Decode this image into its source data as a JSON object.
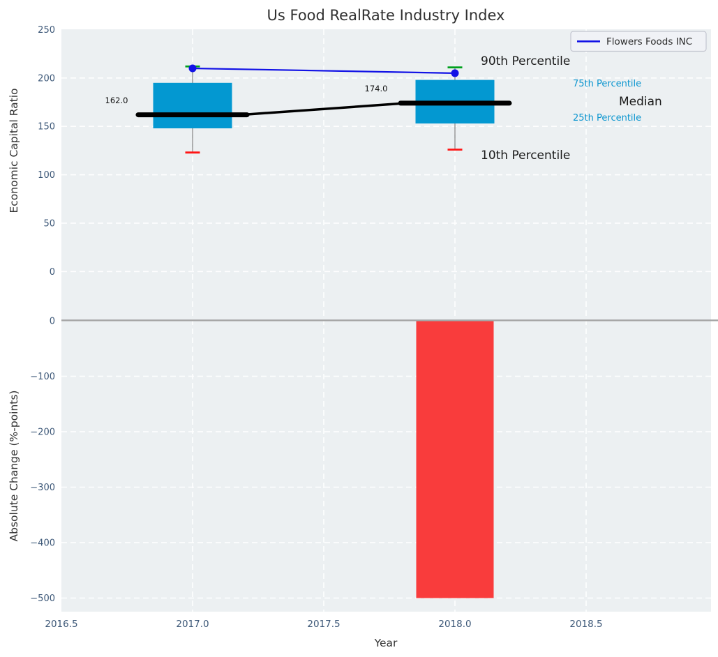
{
  "figure": {
    "title": "Us Food RealRate Industry Index",
    "background": "#ffffff",
    "plot_background": "#ecf0f2",
    "grid_color": "#ffffff",
    "tick_color": "#3d5878",
    "title_color": "#303030",
    "axis_label_color": "#333333"
  },
  "chart_data": [
    {
      "type": "box",
      "title": "Us Food RealRate Industry Index",
      "ylabel": "Economic Capital Ratio",
      "xlabel": "Year",
      "x": [
        2017,
        2018
      ],
      "xlim": [
        2016.5,
        2018.975
      ],
      "ylim": [
        -50,
        250
      ],
      "grid": true,
      "legend_position": "upper right",
      "legend": {
        "entries": [
          {
            "label": "Flowers Foods INC",
            "color": "#1212e6"
          }
        ]
      },
      "yticks": [
        250,
        200,
        150,
        100,
        50,
        0
      ],
      "ytick_labels": [
        "250",
        "200",
        "150",
        "100",
        "50",
        "0"
      ],
      "xticks": [
        2016.5,
        2017.0,
        2017.5,
        2018.0,
        2018.5
      ],
      "xtick_labels": [
        "2016.5",
        "2017.0",
        "2017.5",
        "2018.0",
        "2018.5"
      ],
      "series": [
        {
          "name": "90th Percentile",
          "values": [
            212,
            211
          ],
          "color": "#00a01e"
        },
        {
          "name": "75th Percentile",
          "values": [
            195,
            198
          ],
          "color": "#0398d1"
        },
        {
          "name": "Median",
          "values": [
            162,
            174
          ],
          "color": "#000000"
        },
        {
          "name": "25th Percentile",
          "values": [
            148,
            153
          ],
          "color": "#0398d1"
        },
        {
          "name": "10th Percentile",
          "values": [
            123,
            126
          ],
          "color": "#ff1414"
        },
        {
          "name": "Flowers Foods INC",
          "type": "line+marker",
          "values": [
            210,
            205
          ],
          "color": "#1212e6"
        }
      ],
      "box_fill": "#0398d1",
      "whisker_color": "#808080",
      "median_labels": [
        {
          "text": "162.0",
          "x": 2017,
          "y": 162
        },
        {
          "text": "174.0",
          "x": 2018,
          "y": 174
        }
      ],
      "percentile_labels": {
        "p90": "90th Percentile",
        "p75": "75th Percentile",
        "median": "Median",
        "p25": "25th Percentile",
        "p10": "10th Percentile"
      },
      "label_color_large": "#1a1a1a",
      "label_color_small": "#0a95cf"
    },
    {
      "type": "bar",
      "ylabel": "Absolute Change (%-points)",
      "xlabel": "Year",
      "categories": [
        2017,
        2018
      ],
      "values": [
        0,
        -500
      ],
      "bar_color": "#f93c3c",
      "ylim": [
        -527,
        3
      ],
      "yticks": [
        0,
        -100,
        -200,
        -300,
        -400,
        -500
      ],
      "ytick_labels": [
        "0",
        "−100",
        "−200",
        "−300",
        "−400",
        "−500"
      ],
      "zero_line_color": "#a6a6a6"
    }
  ]
}
